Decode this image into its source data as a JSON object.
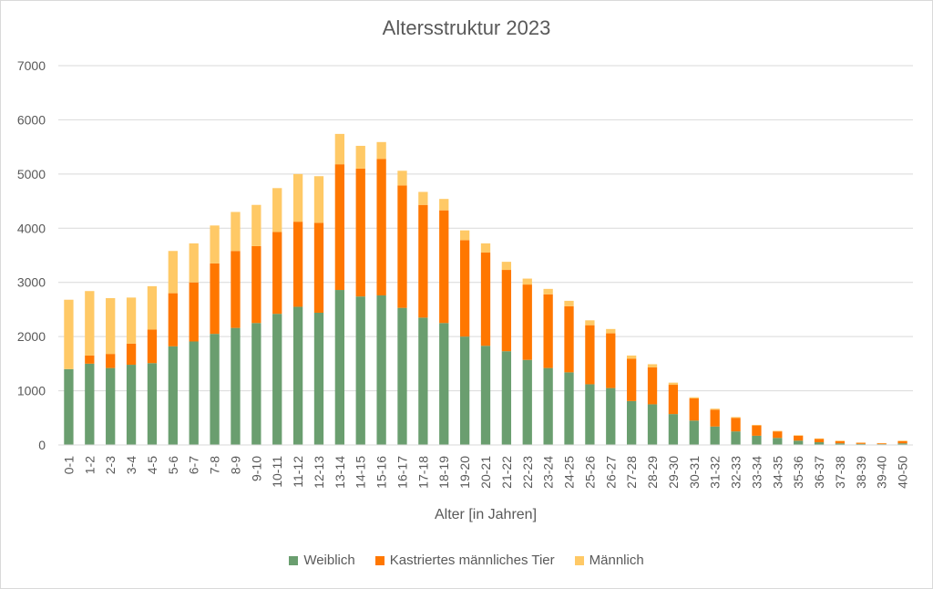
{
  "chart_data": {
    "type": "bar",
    "stacked": true,
    "title": "Altersstruktur 2023",
    "xlabel": "Alter [in Jahren]",
    "ylabel": "",
    "ylim": [
      0,
      7000
    ],
    "yticks": [
      "0",
      "1000",
      "2000",
      "3000",
      "4000",
      "5000",
      "6000",
      "7000"
    ],
    "grid": true,
    "legend_position": "bottom",
    "categories": [
      "0-1",
      "1-2",
      "2-3",
      "3-4",
      "4-5",
      "5-6",
      "6-7",
      "7-8",
      "8-9",
      "9-10",
      "10-11",
      "11-12",
      "12-13",
      "13-14",
      "14-15",
      "15-16",
      "16-17",
      "17-18",
      "18-19",
      "19-20",
      "20-21",
      "21-22",
      "22-23",
      "23-24",
      "24-25",
      "25-26",
      "26-27",
      "27-28",
      "28-29",
      "29-30",
      "30-31",
      "31-32",
      "32-33",
      "33-34",
      "34-35",
      "35-36",
      "36-37",
      "37-38",
      "38-39",
      "39-40",
      "40-50"
    ],
    "series": [
      {
        "name": "Weiblich",
        "color": "#6a9e6f",
        "values": [
          1400,
          1500,
          1420,
          1480,
          1510,
          1820,
          1910,
          2050,
          2160,
          2250,
          2420,
          2550,
          2440,
          2860,
          2740,
          2760,
          2530,
          2350,
          2250,
          2000,
          1830,
          1730,
          1570,
          1420,
          1340,
          1120,
          1050,
          810,
          750,
          570,
          450,
          340,
          250,
          170,
          130,
          80,
          50,
          30,
          20,
          15,
          30
        ]
      },
      {
        "name": "Kastriertes männliches Tier",
        "color": "#ff7700",
        "values": [
          0,
          150,
          260,
          390,
          620,
          980,
          1090,
          1300,
          1420,
          1420,
          1510,
          1570,
          1660,
          2320,
          2360,
          2520,
          2260,
          2080,
          2080,
          1780,
          1720,
          1500,
          1390,
          1360,
          1220,
          1090,
          1010,
          780,
          680,
          540,
          410,
          310,
          250,
          190,
          120,
          90,
          60,
          40,
          20,
          15,
          40
        ]
      },
      {
        "name": "Männlich",
        "color": "#ffc966",
        "values": [
          1280,
          1190,
          1030,
          850,
          800,
          780,
          720,
          700,
          720,
          760,
          810,
          880,
          860,
          560,
          420,
          310,
          270,
          240,
          210,
          180,
          170,
          150,
          110,
          100,
          100,
          90,
          80,
          60,
          60,
          40,
          20,
          20,
          15,
          10,
          10,
          10,
          10,
          10,
          5,
          5,
          10
        ]
      }
    ]
  }
}
